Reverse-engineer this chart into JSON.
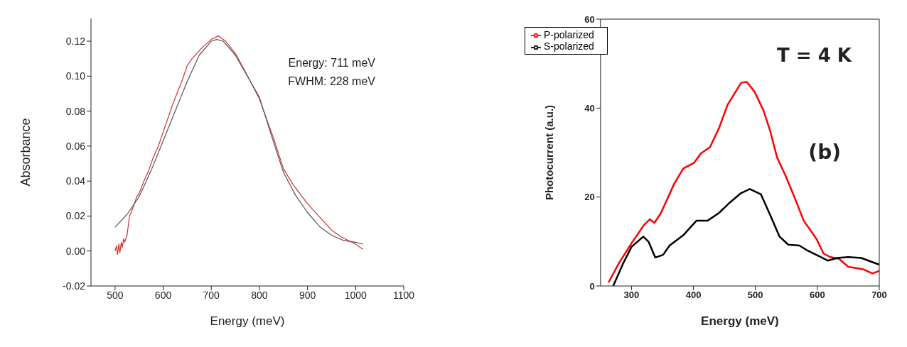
{
  "chart_data": [
    {
      "type": "line",
      "xlabel": "Energy (meV)",
      "ylabel": "Absorbance",
      "xlim": [
        450,
        1100
      ],
      "xticks": [
        500,
        600,
        700,
        800,
        900,
        1000,
        1100
      ],
      "ylim": [
        -0.02,
        0.133
      ],
      "yticks": [
        {
          "value": -0.02,
          "label": "-0.02"
        },
        {
          "value": 0,
          "label": "0.00"
        },
        {
          "value": 0.02,
          "label": "0.02"
        },
        {
          "value": 0.04,
          "label": "0.04"
        },
        {
          "value": 0.06,
          "label": "0.06"
        },
        {
          "value": 0.08,
          "label": "0.08"
        },
        {
          "value": 0.1,
          "label": "0.10"
        },
        {
          "value": 0.12,
          "label": "0.12"
        }
      ],
      "legend": false,
      "annotations": [
        "Energy: 711 meV",
        "FWHM: 228 meV"
      ],
      "series": [
        {
          "color": "#d03030",
          "x": [
            500,
            503,
            505,
            508,
            510,
            513,
            515,
            518,
            520,
            525,
            530,
            535,
            540,
            545,
            550,
            560,
            570,
            580,
            590,
            600,
            620,
            640,
            650,
            660,
            680,
            700,
            715,
            730,
            750,
            770,
            800,
            830,
            850,
            870,
            900,
            930,
            950,
            970,
            1000,
            1015
          ],
          "values": [
            0.0,
            0.003,
            -0.002,
            0.004,
            -0.001,
            0.005,
            0.002,
            0.007,
            0.005,
            0.009,
            0.02,
            0.023,
            0.027,
            0.031,
            0.033,
            0.04,
            0.046,
            0.054,
            0.06,
            0.068,
            0.084,
            0.098,
            0.106,
            0.11,
            0.116,
            0.121,
            0.123,
            0.12,
            0.113,
            0.103,
            0.087,
            0.064,
            0.047,
            0.038,
            0.027,
            0.018,
            0.012,
            0.008,
            0.004,
            0.001
          ]
        },
        {
          "color": "#555555",
          "x": [
            500,
            525,
            550,
            575,
            600,
            625,
            650,
            675,
            700,
            711,
            725,
            750,
            775,
            800,
            825,
            850,
            875,
            900,
            925,
            950,
            975,
            1000,
            1015
          ],
          "values": [
            0.0136,
            0.021,
            0.031,
            0.046,
            0.063,
            0.08,
            0.097,
            0.112,
            0.12,
            0.121,
            0.12,
            0.112,
            0.1,
            0.088,
            0.066,
            0.045,
            0.032,
            0.022,
            0.014,
            0.009,
            0.006,
            0.005,
            0.004
          ]
        }
      ]
    },
    {
      "type": "line",
      "xlabel": "Energy (meV)",
      "ylabel": "Photocurrent (a.u.)",
      "xlim": [
        250,
        700
      ],
      "xticks": [
        300,
        400,
        500,
        600,
        700
      ],
      "ylim": [
        0,
        60
      ],
      "yticks": [
        0,
        20,
        40,
        60
      ],
      "legend": "top left",
      "annotations": [
        "T = 4 K",
        "(b)"
      ],
      "series": [
        {
          "name": "P-polarized",
          "color": "#ff0000",
          "x": [
            263,
            280,
            300,
            319,
            329.5,
            337,
            347.5,
            369,
            383.5,
            401,
            412,
            426.6,
            441,
            455,
            477,
            486,
            498.6,
            513,
            524,
            535,
            549,
            563,
            578,
            599,
            610,
            621,
            635,
            650,
            664,
            675,
            689,
            698,
            700
          ],
          "values": [
            0.8,
            5.2,
            9.6,
            13.5,
            15.0,
            14.2,
            16.4,
            23.0,
            26.4,
            27.7,
            29.8,
            31.2,
            35.4,
            40.7,
            45.7,
            45.9,
            43.7,
            39.5,
            34.8,
            28.9,
            24.7,
            20.0,
            14.7,
            10.5,
            7.3,
            6.5,
            6.1,
            4.3,
            4.0,
            3.7,
            2.8,
            3.3,
            3.4
          ]
        },
        {
          "name": "S-polarized",
          "color": "#000000",
          "x": [
            270.5,
            286,
            300,
            311.5,
            319,
            327.7,
            338.5,
            351,
            361.5,
            383.5,
            405,
            423,
            441,
            459,
            477,
            491,
            509,
            524,
            539,
            553,
            571,
            585,
            603,
            617,
            632,
            650,
            671,
            686,
            698,
            700
          ],
          "values": [
            0,
            4.9,
            8.8,
            10.2,
            11.1,
            9.9,
            6.4,
            7.0,
            9.1,
            11.4,
            14.7,
            14.7,
            16.4,
            18.8,
            20.9,
            21.8,
            20.6,
            15.9,
            11.1,
            9.3,
            9.1,
            7.9,
            6.7,
            5.7,
            6.3,
            6.5,
            6.3,
            5.5,
            4.9,
            4.8
          ]
        }
      ]
    }
  ]
}
